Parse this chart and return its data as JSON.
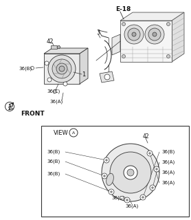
{
  "bg_color": "#ffffff",
  "label_e18": "E-18",
  "label_42": "42",
  "label_3": "3",
  "label_1": "1",
  "label_36b": "36(B)",
  "label_36c": "36(C)",
  "label_36a": "36(A)",
  "label_front": "FRONT",
  "lc": "#333333",
  "tc": "#111111",
  "fs": 5.5,
  "fs_label": 5.0
}
